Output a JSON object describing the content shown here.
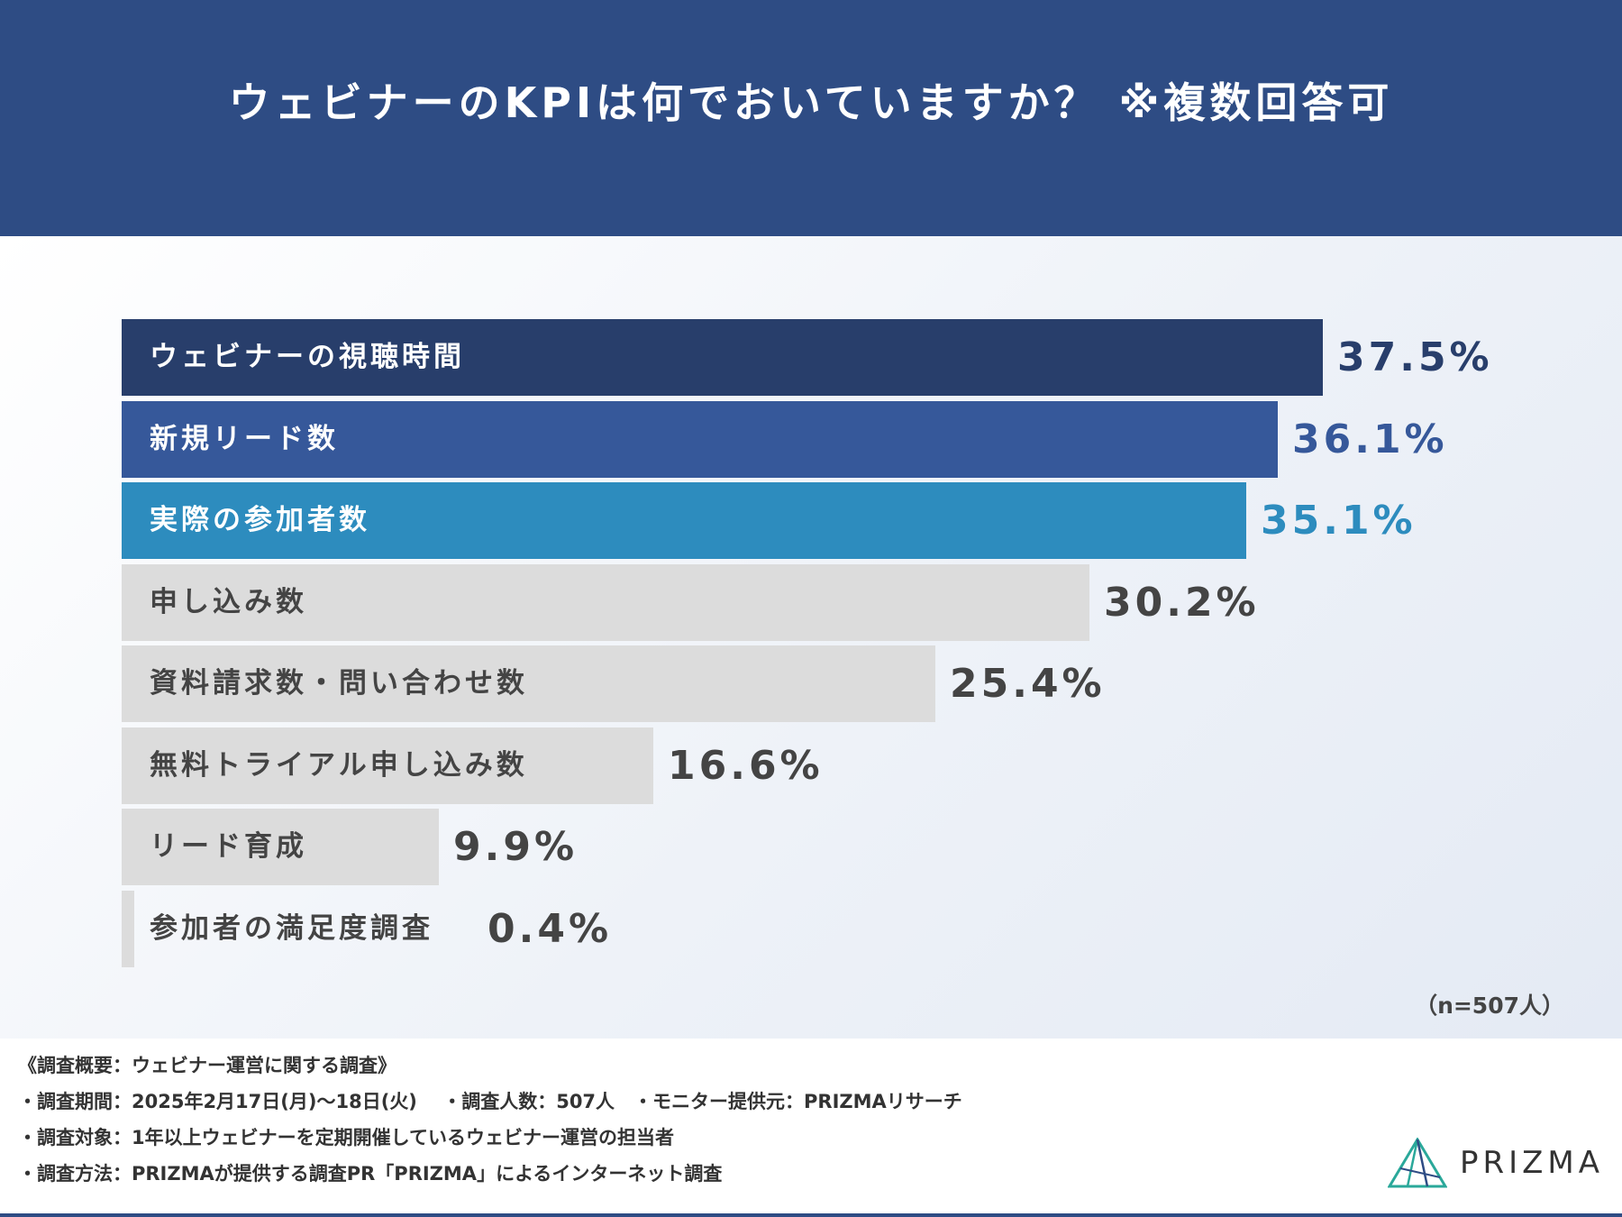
{
  "title": "ウェビナーのKPIは何でおいていますか？ ※複数回答可",
  "chart_data": {
    "type": "bar",
    "orientation": "horizontal",
    "categories": [
      "ウェビナーの視聴時間",
      "新規リード数",
      "実際の参加者数",
      "申し込み数",
      "資料請求数・問い合わせ数",
      "無料トライアル申し込み数",
      "リード育成",
      "参加者の満足度調査"
    ],
    "values": [
      37.5,
      36.1,
      35.1,
      30.2,
      25.4,
      16.6,
      9.9,
      0.4
    ],
    "value_labels": [
      "37.5%",
      "36.1%",
      "35.1%",
      "30.2%",
      "25.4%",
      "16.6%",
      "9.9%",
      "0.4%"
    ],
    "xlim": [
      0,
      37.5
    ],
    "unit": "%",
    "grid": false,
    "colors": [
      "#283e6b",
      "#36589a",
      "#2d8cbe",
      "#dcdcdc",
      "#dcdcdc",
      "#dcdcdc",
      "#dcdcdc",
      "#dcdcdc"
    ],
    "label_colors": [
      "#ffffff",
      "#ffffff",
      "#ffffff",
      "#444444",
      "#444444",
      "#444444",
      "#444444",
      "#444444"
    ],
    "value_colors": [
      "#283e6b",
      "#36589a",
      "#2d8cbe",
      "#444444",
      "#444444",
      "#444444",
      "#444444",
      "#444444"
    ]
  },
  "sample_note": "（n=507人）",
  "footer": {
    "lines": [
      "《調査概要：ウェビナー運営に関する調査》",
      "・調査期間：2025年2月17日(月)〜18日(火)　 ・調査人数：507人　・モニター提供元：PRIZMAリサーチ",
      "・調査対象：1年以上ウェビナーを定期開催しているウェビナー運営の担当者",
      "・調査方法：PRIZMAが提供する調査PR「PRIZMA」によるインターネット調査"
    ]
  },
  "brand": {
    "name": "PRIZMA",
    "logo_icon": "prism-triangle-icon"
  }
}
